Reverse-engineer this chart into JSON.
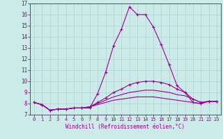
{
  "xlabel": "Windchill (Refroidissement éolien,°C)",
  "xlim": [
    -0.5,
    23.5
  ],
  "ylim": [
    7,
    17
  ],
  "yticks": [
    7,
    8,
    9,
    10,
    11,
    12,
    13,
    14,
    15,
    16,
    17
  ],
  "xticks": [
    0,
    1,
    2,
    3,
    4,
    5,
    6,
    7,
    8,
    9,
    10,
    11,
    12,
    13,
    14,
    15,
    16,
    17,
    18,
    19,
    20,
    21,
    22,
    23
  ],
  "background_color": "#cceae7",
  "grid_color": "#b0d8d4",
  "line_color": "#990099",
  "lines": [
    {
      "x": [
        0,
        1,
        2,
        3,
        4,
        5,
        6,
        7,
        8,
        9,
        10,
        11,
        12,
        13,
        14,
        15,
        16,
        17,
        18,
        19,
        20,
        21,
        22,
        23
      ],
      "y": [
        8.1,
        7.9,
        7.4,
        7.5,
        7.5,
        7.6,
        7.6,
        7.6,
        8.9,
        10.8,
        13.2,
        14.7,
        16.7,
        16.0,
        16.0,
        14.9,
        13.3,
        11.5,
        9.6,
        9.0,
        8.1,
        8.0,
        8.2,
        8.2
      ],
      "marker": "+"
    },
    {
      "x": [
        0,
        1,
        2,
        3,
        4,
        5,
        6,
        7,
        8,
        9,
        10,
        11,
        12,
        13,
        14,
        15,
        16,
        17,
        18,
        19,
        20,
        21,
        22,
        23
      ],
      "y": [
        8.1,
        7.9,
        7.4,
        7.5,
        7.5,
        7.6,
        7.6,
        7.7,
        8.1,
        8.5,
        9.0,
        9.3,
        9.7,
        9.9,
        10.0,
        10.0,
        9.9,
        9.7,
        9.3,
        9.0,
        8.4,
        8.1,
        8.2,
        8.2
      ],
      "marker": "+"
    },
    {
      "x": [
        0,
        1,
        2,
        3,
        4,
        5,
        6,
        7,
        8,
        9,
        10,
        11,
        12,
        13,
        14,
        15,
        16,
        17,
        18,
        19,
        20,
        21,
        22,
        23
      ],
      "y": [
        8.1,
        7.9,
        7.4,
        7.5,
        7.5,
        7.6,
        7.6,
        7.7,
        8.0,
        8.3,
        8.6,
        8.8,
        9.0,
        9.1,
        9.2,
        9.2,
        9.1,
        9.0,
        8.8,
        8.7,
        8.4,
        8.1,
        8.2,
        8.2
      ],
      "marker": null
    },
    {
      "x": [
        0,
        1,
        2,
        3,
        4,
        5,
        6,
        7,
        8,
        9,
        10,
        11,
        12,
        13,
        14,
        15,
        16,
        17,
        18,
        19,
        20,
        21,
        22,
        23
      ],
      "y": [
        8.1,
        7.9,
        7.4,
        7.5,
        7.5,
        7.6,
        7.6,
        7.7,
        7.9,
        8.1,
        8.3,
        8.4,
        8.5,
        8.6,
        8.6,
        8.6,
        8.5,
        8.4,
        8.3,
        8.2,
        8.1,
        8.0,
        8.2,
        8.2
      ],
      "marker": null
    }
  ]
}
